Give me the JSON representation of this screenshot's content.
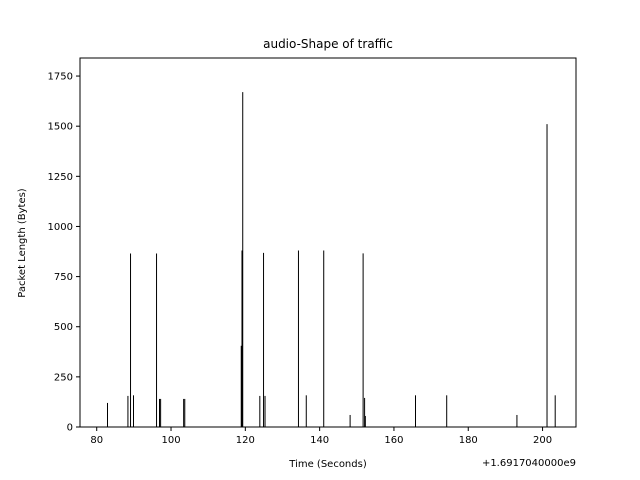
{
  "chart_data": {
    "type": "bar",
    "title": "audio-Shape of traffic",
    "xlabel": "Time (Seconds)",
    "ylabel": "Packet Length (Bytes)",
    "x_offset_label": "+1.6917040000e9",
    "xlim": [
      75.5,
      209
    ],
    "ylim": [
      0,
      1840
    ],
    "x_ticks": [
      {
        "value": 80,
        "label": "80"
      },
      {
        "value": 100,
        "label": "100"
      },
      {
        "value": 120,
        "label": "120"
      },
      {
        "value": 140,
        "label": "140"
      },
      {
        "value": 160,
        "label": "160"
      },
      {
        "value": 180,
        "label": "180"
      },
      {
        "value": 200,
        "label": "200"
      }
    ],
    "y_ticks": [
      {
        "value": 0,
        "label": "0"
      },
      {
        "value": 250,
        "label": "250"
      },
      {
        "value": 500,
        "label": "500"
      },
      {
        "value": 750,
        "label": "750"
      },
      {
        "value": 1000,
        "label": "1000"
      },
      {
        "value": 1250,
        "label": "1250"
      },
      {
        "value": 1500,
        "label": "1500"
      },
      {
        "value": 1750,
        "label": "1750"
      }
    ],
    "grid": false,
    "bar_color": "#000000",
    "points": [
      {
        "x": 82.9,
        "y": 120
      },
      {
        "x": 88.4,
        "y": 155
      },
      {
        "x": 89.1,
        "y": 865
      },
      {
        "x": 89.9,
        "y": 158
      },
      {
        "x": 96.1,
        "y": 865
      },
      {
        "x": 96.9,
        "y": 140
      },
      {
        "x": 97.2,
        "y": 140
      },
      {
        "x": 103.4,
        "y": 140
      },
      {
        "x": 103.7,
        "y": 140
      },
      {
        "x": 118.9,
        "y": 405
      },
      {
        "x": 119.1,
        "y": 880
      },
      {
        "x": 119.3,
        "y": 1670
      },
      {
        "x": 123.9,
        "y": 155
      },
      {
        "x": 124.9,
        "y": 868
      },
      {
        "x": 125.3,
        "y": 155
      },
      {
        "x": 134.3,
        "y": 880
      },
      {
        "x": 136.4,
        "y": 158
      },
      {
        "x": 141.1,
        "y": 880
      },
      {
        "x": 148.2,
        "y": 60
      },
      {
        "x": 151.7,
        "y": 866
      },
      {
        "x": 152.1,
        "y": 145
      },
      {
        "x": 152.3,
        "y": 55
      },
      {
        "x": 165.8,
        "y": 158
      },
      {
        "x": 174.2,
        "y": 158
      },
      {
        "x": 193.1,
        "y": 60
      },
      {
        "x": 201.2,
        "y": 1510
      },
      {
        "x": 203.4,
        "y": 158
      }
    ]
  }
}
